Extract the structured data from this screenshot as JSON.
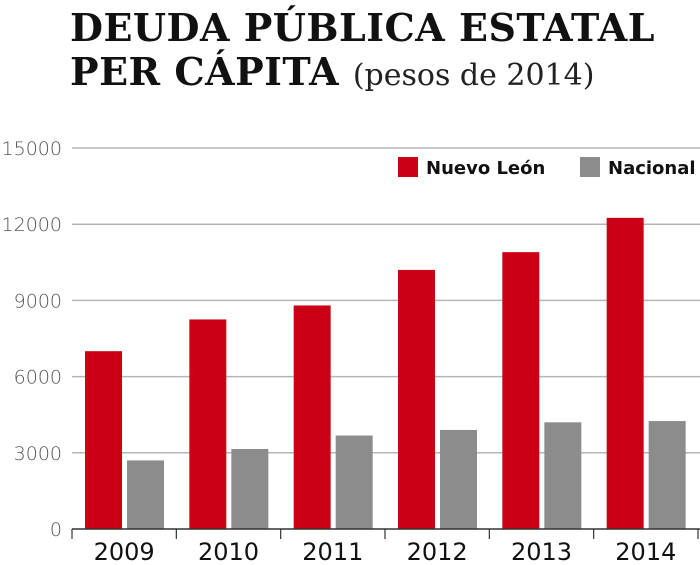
{
  "chart_data": {
    "type": "bar",
    "title_line1": "DEUDA PÚBLICA ESTATAL",
    "title_line2": "PER CÁPITA",
    "subtitle": "(pesos de 2014)",
    "categories": [
      "2009",
      "2010",
      "2011",
      "2012",
      "2013",
      "2014"
    ],
    "series": [
      {
        "name": "Nuevo León",
        "color": "#cc0014",
        "values": [
          7000,
          8250,
          8800,
          10200,
          10900,
          12250
        ]
      },
      {
        "name": "Nacional",
        "color": "#8c8c8c",
        "values": [
          2700,
          3150,
          3680,
          3900,
          4200,
          4250
        ]
      }
    ],
    "ylim": [
      0,
      15000
    ],
    "yticks": [
      "0",
      "3000",
      "6000",
      "9000",
      "12000",
      "15000"
    ],
    "grid": true,
    "legend": "top-right"
  }
}
